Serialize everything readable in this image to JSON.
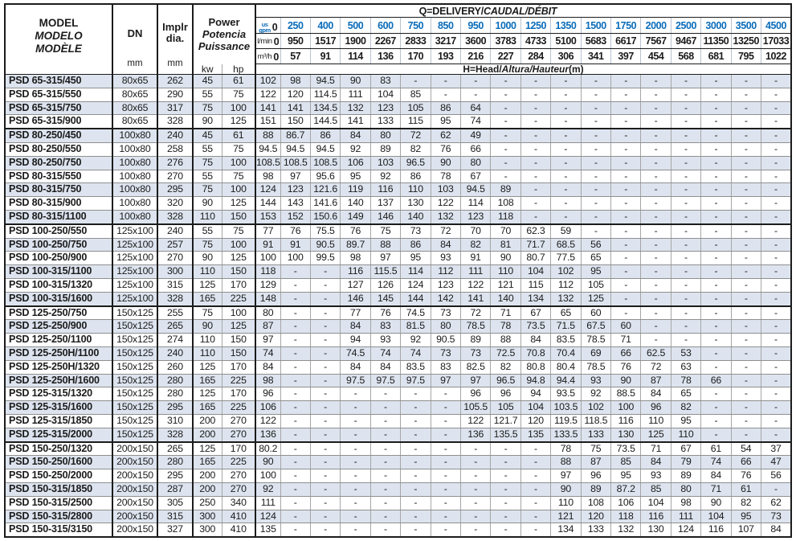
{
  "title_block": {
    "model_en": "MODEL",
    "model_es": "MODELO",
    "model_fr": "MODÈLE"
  },
  "columns": {
    "dn_label": "DN",
    "dn_unit": "mm",
    "impeller_label_1": "Implr",
    "impeller_label_2": "dia.",
    "impeller_unit": "mm",
    "power_en": "Power",
    "power_es": "Potencia",
    "power_fr": "Puissance",
    "power_kw": "kw",
    "power_hp": "hp"
  },
  "delivery": {
    "title_main": "Q=DELIVERY/",
    "title_intl": "CAUDAL/DÉBIT",
    "unit_gpm_top": "us",
    "unit_gpm_bottom": "gpm",
    "unit_lmin": "l/min",
    "unit_m3h": "m³/h",
    "zero": "0",
    "gpm": [
      "250",
      "400",
      "500",
      "600",
      "750",
      "850",
      "950",
      "1000",
      "1250",
      "1350",
      "1500",
      "1750",
      "2000",
      "2500",
      "3000",
      "3500",
      "4500"
    ],
    "lmin": [
      "950",
      "1517",
      "1900",
      "2267",
      "2833",
      "3217",
      "3600",
      "3783",
      "4733",
      "5100",
      "5683",
      "6617",
      "7567",
      "9467",
      "11350",
      "13250",
      "17033"
    ],
    "m3h": [
      "57",
      "91",
      "114",
      "136",
      "170",
      "193",
      "216",
      "227",
      "284",
      "306",
      "341",
      "397",
      "454",
      "568",
      "681",
      "795",
      "1022"
    ]
  },
  "head": {
    "title_main": "H=Head/",
    "title_intl": "Altura/Hauteur",
    "title_unit": "(m)"
  },
  "colors": {
    "accent_blue": "#0a6cba",
    "stripe": "#dde4ef",
    "border_dark": "#1c1c1c",
    "border_light": "#a6a6a6"
  },
  "rows": [
    {
      "model": "PSD 65-315/450",
      "dn": "80x65",
      "dia": "262",
      "kw": "45",
      "hp": "61",
      "heads": [
        "102",
        "98",
        "94.5",
        "90",
        "83",
        "-",
        "-",
        "-",
        "-",
        "-",
        "-",
        "-",
        "-",
        "-",
        "-",
        "-",
        "-",
        "-"
      ]
    },
    {
      "model": "PSD 65-315/550",
      "dn": "80x65",
      "dia": "290",
      "kw": "55",
      "hp": "75",
      "heads": [
        "122",
        "120",
        "114.5",
        "111",
        "104",
        "85",
        "-",
        "-",
        "-",
        "-",
        "-",
        "-",
        "-",
        "-",
        "-",
        "-",
        "-",
        "-"
      ]
    },
    {
      "model": "PSD 65-315/750",
      "dn": "80x65",
      "dia": "317",
      "kw": "75",
      "hp": "100",
      "heads": [
        "141",
        "141",
        "134.5",
        "132",
        "123",
        "105",
        "86",
        "64",
        "-",
        "-",
        "-",
        "-",
        "-",
        "-",
        "-",
        "-",
        "-",
        "-"
      ]
    },
    {
      "model": "PSD 65-315/900",
      "dn": "80x65",
      "dia": "328",
      "kw": "90",
      "hp": "125",
      "heads": [
        "151",
        "150",
        "144.5",
        "141",
        "133",
        "115",
        "95",
        "74",
        "-",
        "-",
        "-",
        "-",
        "-",
        "-",
        "-",
        "-",
        "-",
        "-"
      ]
    },
    {
      "model": "PSD 80-250/450",
      "dn": "100x80",
      "dia": "240",
      "kw": "45",
      "hp": "61",
      "heads": [
        "88",
        "86.7",
        "86",
        "84",
        "80",
        "72",
        "62",
        "49",
        "-",
        "-",
        "-",
        "-",
        "-",
        "-",
        "-",
        "-",
        "-",
        "-"
      ]
    },
    {
      "model": "PSD 80-250/550",
      "dn": "100x80",
      "dia": "258",
      "kw": "55",
      "hp": "75",
      "heads": [
        "94.5",
        "94.5",
        "94.5",
        "92",
        "89",
        "82",
        "76",
        "66",
        "-",
        "-",
        "-",
        "-",
        "-",
        "-",
        "-",
        "-",
        "-",
        "-"
      ]
    },
    {
      "model": "PSD 80-250/750",
      "dn": "100x80",
      "dia": "276",
      "kw": "75",
      "hp": "100",
      "heads": [
        "108.5",
        "108.5",
        "108.5",
        "106",
        "103",
        "96.5",
        "90",
        "80",
        "-",
        "-",
        "-",
        "-",
        "-",
        "-",
        "-",
        "-",
        "-",
        "-"
      ]
    },
    {
      "model": "PSD 80-315/550",
      "dn": "100x80",
      "dia": "270",
      "kw": "55",
      "hp": "75",
      "heads": [
        "98",
        "97",
        "95.6",
        "95",
        "92",
        "86",
        "78",
        "67",
        "-",
        "-",
        "-",
        "-",
        "-",
        "-",
        "-",
        "-",
        "-",
        "-"
      ]
    },
    {
      "model": "PSD 80-315/750",
      "dn": "100x80",
      "dia": "295",
      "kw": "75",
      "hp": "100",
      "heads": [
        "124",
        "123",
        "121.6",
        "119",
        "116",
        "110",
        "103",
        "94.5",
        "89",
        "-",
        "-",
        "-",
        "-",
        "-",
        "-",
        "-",
        "-",
        "-"
      ]
    },
    {
      "model": "PSD 80-315/900",
      "dn": "100x80",
      "dia": "320",
      "kw": "90",
      "hp": "125",
      "heads": [
        "144",
        "143",
        "141.6",
        "140",
        "137",
        "130",
        "122",
        "114",
        "108",
        "-",
        "-",
        "-",
        "-",
        "-",
        "-",
        "-",
        "-",
        "-"
      ]
    },
    {
      "model": "PSD 80-315/1100",
      "dn": "100x80",
      "dia": "328",
      "kw": "110",
      "hp": "150",
      "heads": [
        "153",
        "152",
        "150.6",
        "149",
        "146",
        "140",
        "132",
        "123",
        "118",
        "-",
        "-",
        "-",
        "-",
        "-",
        "-",
        "-",
        "-",
        "-"
      ]
    },
    {
      "model": "PSD 100-250/550",
      "dn": "125x100",
      "dia": "240",
      "kw": "55",
      "hp": "75",
      "heads": [
        "77",
        "76",
        "75.5",
        "76",
        "75",
        "73",
        "72",
        "70",
        "70",
        "62.3",
        "59",
        "-",
        "-",
        "-",
        "-",
        "-",
        "-",
        "-"
      ]
    },
    {
      "model": "PSD 100-250/750",
      "dn": "125x100",
      "dia": "257",
      "kw": "75",
      "hp": "100",
      "heads": [
        "91",
        "91",
        "90.5",
        "89.7",
        "88",
        "86",
        "84",
        "82",
        "81",
        "71.7",
        "68.5",
        "56",
        "-",
        "-",
        "-",
        "-",
        "-",
        "-"
      ]
    },
    {
      "model": "PSD 100-250/900",
      "dn": "125x100",
      "dia": "270",
      "kw": "90",
      "hp": "125",
      "heads": [
        "100",
        "100",
        "99.5",
        "98",
        "97",
        "95",
        "93",
        "91",
        "90",
        "80.7",
        "77.5",
        "65",
        "-",
        "-",
        "-",
        "-",
        "-",
        "-"
      ]
    },
    {
      "model": "PSD 100-315/1100",
      "dn": "125x100",
      "dia": "300",
      "kw": "110",
      "hp": "150",
      "heads": [
        "118",
        "-",
        "-",
        "116",
        "115.5",
        "114",
        "112",
        "111",
        "110",
        "104",
        "102",
        "95",
        "-",
        "-",
        "-",
        "-",
        "-",
        "-"
      ]
    },
    {
      "model": "PSD 100-315/1320",
      "dn": "125x100",
      "dia": "315",
      "kw": "125",
      "hp": "170",
      "heads": [
        "129",
        "-",
        "-",
        "127",
        "126",
        "124",
        "123",
        "122",
        "121",
        "115",
        "112",
        "105",
        "-",
        "-",
        "-",
        "-",
        "-",
        "-"
      ]
    },
    {
      "model": "PSD 100-315/1600",
      "dn": "125x100",
      "dia": "328",
      "kw": "165",
      "hp": "225",
      "heads": [
        "148",
        "-",
        "-",
        "146",
        "145",
        "144",
        "142",
        "141",
        "140",
        "134",
        "132",
        "125",
        "-",
        "-",
        "-",
        "-",
        "-",
        "-"
      ]
    },
    {
      "model": "PSD 125-250/750",
      "dn": "150x125",
      "dia": "255",
      "kw": "75",
      "hp": "100",
      "heads": [
        "80",
        "-",
        "-",
        "77",
        "76",
        "74.5",
        "73",
        "72",
        "71",
        "67",
        "65",
        "60",
        "-",
        "-",
        "-",
        "-",
        "-",
        "-"
      ]
    },
    {
      "model": "PSD 125-250/900",
      "dn": "150x125",
      "dia": "265",
      "kw": "90",
      "hp": "125",
      "heads": [
        "87",
        "-",
        "-",
        "84",
        "83",
        "81.5",
        "80",
        "78.5",
        "78",
        "73.5",
        "71.5",
        "67.5",
        "60",
        "-",
        "-",
        "-",
        "-",
        "-"
      ]
    },
    {
      "model": "PSD 125-250/1100",
      "dn": "150x125",
      "dia": "274",
      "kw": "110",
      "hp": "150",
      "heads": [
        "97",
        "-",
        "-",
        "94",
        "93",
        "92",
        "90.5",
        "89",
        "88",
        "84",
        "83.5",
        "78.5",
        "71",
        "-",
        "-",
        "-",
        "-",
        "-"
      ]
    },
    {
      "model": "PSD 125-250H/1100",
      "dn": "150x125",
      "dia": "240",
      "kw": "110",
      "hp": "150",
      "heads": [
        "74",
        "-",
        "-",
        "74.5",
        "74",
        "74",
        "73",
        "73",
        "72.5",
        "70.8",
        "70.4",
        "69",
        "66",
        "62.5",
        "53",
        "-",
        "-",
        "-"
      ]
    },
    {
      "model": "PSD 125-250H/1320",
      "dn": "150x125",
      "dia": "260",
      "kw": "125",
      "hp": "170",
      "heads": [
        "84",
        "-",
        "-",
        "84",
        "84",
        "83.5",
        "83",
        "82.5",
        "82",
        "80.8",
        "80.4",
        "78.5",
        "76",
        "72",
        "63",
        "-",
        "-",
        "-"
      ]
    },
    {
      "model": "PSD 125-250H/1600",
      "dn": "150x125",
      "dia": "280",
      "kw": "165",
      "hp": "225",
      "heads": [
        "98",
        "-",
        "-",
        "97.5",
        "97.5",
        "97.5",
        "97",
        "97",
        "96.5",
        "94.8",
        "94.4",
        "93",
        "90",
        "87",
        "78",
        "66",
        "-",
        "-"
      ]
    },
    {
      "model": "PSD 125-315/1320",
      "dn": "150x125",
      "dia": "280",
      "kw": "125",
      "hp": "170",
      "heads": [
        "96",
        "-",
        "-",
        "-",
        "-",
        "-",
        "-",
        "96",
        "96",
        "94",
        "93.5",
        "92",
        "88.5",
        "84",
        "65",
        "-",
        "-",
        "-"
      ]
    },
    {
      "model": "PSD 125-315/1600",
      "dn": "150x125",
      "dia": "295",
      "kw": "165",
      "hp": "225",
      "heads": [
        "106",
        "-",
        "-",
        "-",
        "-",
        "-",
        "-",
        "105.5",
        "105",
        "104",
        "103.5",
        "102",
        "100",
        "96",
        "82",
        "-",
        "-",
        "-"
      ]
    },
    {
      "model": "PSD 125-315/1850",
      "dn": "150x125",
      "dia": "310",
      "kw": "200",
      "hp": "270",
      "heads": [
        "122",
        "-",
        "-",
        "-",
        "-",
        "-",
        "-",
        "122",
        "121.7",
        "120",
        "119.5",
        "118.5",
        "116",
        "110",
        "95",
        "-",
        "-",
        "-"
      ]
    },
    {
      "model": "PSD 125-315/2000",
      "dn": "150x125",
      "dia": "328",
      "kw": "200",
      "hp": "270",
      "heads": [
        "136",
        "-",
        "-",
        "-",
        "-",
        "-",
        "-",
        "136",
        "135.5",
        "135",
        "133.5",
        "133",
        "130",
        "125",
        "110",
        "-",
        "-",
        "-"
      ]
    },
    {
      "model": "PSD 150-250/1320",
      "dn": "200x150",
      "dia": "265",
      "kw": "125",
      "hp": "170",
      "heads": [
        "80.2",
        "-",
        "-",
        "-",
        "-",
        "-",
        "-",
        "-",
        "-",
        "-",
        "78",
        "75",
        "73.5",
        "71",
        "67",
        "61",
        "54",
        "37"
      ]
    },
    {
      "model": "PSD 150-250/1600",
      "dn": "200x150",
      "dia": "280",
      "kw": "165",
      "hp": "225",
      "heads": [
        "90",
        "-",
        "-",
        "-",
        "-",
        "-",
        "-",
        "-",
        "-",
        "-",
        "88",
        "87",
        "85",
        "84",
        "79",
        "74",
        "66",
        "47"
      ]
    },
    {
      "model": "PSD 150-250/2000",
      "dn": "200x150",
      "dia": "295",
      "kw": "200",
      "hp": "270",
      "heads": [
        "100",
        "-",
        "-",
        "-",
        "-",
        "-",
        "-",
        "-",
        "-",
        "-",
        "97",
        "96",
        "95",
        "93",
        "89",
        "84",
        "76",
        "56"
      ]
    },
    {
      "model": "PSD 150-315/1850",
      "dn": "200x150",
      "dia": "287",
      "kw": "200",
      "hp": "270",
      "heads": [
        "92",
        "-",
        "-",
        "-",
        "-",
        "-",
        "-",
        "-",
        "-",
        "-",
        "90",
        "89",
        "87.2",
        "85",
        "80",
        "71",
        "61",
        "-"
      ]
    },
    {
      "model": "PSD 150-315/2500",
      "dn": "200x150",
      "dia": "305",
      "kw": "250",
      "hp": "340",
      "heads": [
        "111",
        "-",
        "-",
        "-",
        "-",
        "-",
        "-",
        "-",
        "-",
        "-",
        "110",
        "108",
        "106",
        "104",
        "98",
        "90",
        "82",
        "62"
      ]
    },
    {
      "model": "PSD 150-315/2800",
      "dn": "200x150",
      "dia": "315",
      "kw": "300",
      "hp": "410",
      "heads": [
        "124",
        "-",
        "-",
        "-",
        "-",
        "-",
        "-",
        "-",
        "-",
        "-",
        "121",
        "120",
        "118",
        "116",
        "111",
        "104",
        "95",
        "73"
      ]
    },
    {
      "model": "PSD 150-315/3150",
      "dn": "200x150",
      "dia": "327",
      "kw": "300",
      "hp": "410",
      "heads": [
        "135",
        "-",
        "-",
        "-",
        "-",
        "-",
        "-",
        "-",
        "-",
        "-",
        "134",
        "133",
        "132",
        "130",
        "124",
        "116",
        "107",
        "84"
      ]
    }
  ]
}
